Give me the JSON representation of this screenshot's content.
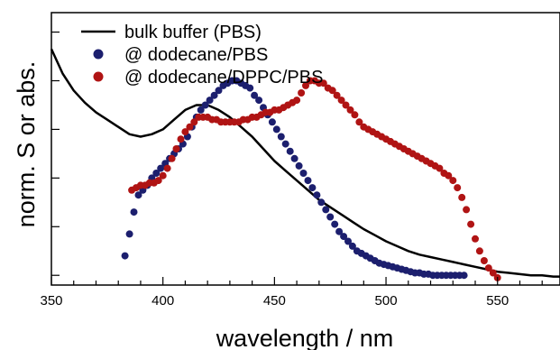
{
  "chart_data": {
    "type": "line",
    "xlabel": "wavelength / nm",
    "ylabel": "norm. S or abs.",
    "xlim": [
      350,
      578
    ],
    "ylim": [
      -0.04,
      1.08
    ],
    "x_ticks": [
      350,
      400,
      450,
      500,
      550
    ],
    "y_ticks_count": 7,
    "y_tick_labels_shown": false,
    "grid": false,
    "legend_placement": "top-left",
    "series": [
      {
        "name": "bulk buffer (PBS)",
        "style": "line",
        "color": "#000000",
        "x": [
          350,
          355,
          360,
          365,
          370,
          375,
          380,
          385,
          390,
          395,
          400,
          405,
          410,
          415,
          420,
          425,
          430,
          435,
          440,
          445,
          450,
          455,
          460,
          465,
          470,
          475,
          480,
          485,
          490,
          495,
          500,
          505,
          510,
          515,
          520,
          525,
          530,
          535,
          540,
          545,
          550,
          555,
          560,
          565,
          570,
          575,
          578
        ],
        "y": [
          0.93,
          0.83,
          0.76,
          0.71,
          0.67,
          0.64,
          0.61,
          0.58,
          0.57,
          0.58,
          0.6,
          0.64,
          0.68,
          0.7,
          0.7,
          0.68,
          0.65,
          0.61,
          0.57,
          0.52,
          0.47,
          0.43,
          0.39,
          0.35,
          0.31,
          0.28,
          0.25,
          0.22,
          0.19,
          0.165,
          0.14,
          0.12,
          0.1,
          0.085,
          0.075,
          0.065,
          0.055,
          0.045,
          0.035,
          0.025,
          0.015,
          0.01,
          0.005,
          0.0,
          0.0,
          -0.005,
          -0.005
        ]
      },
      {
        "name": "@ dodecane/PBS",
        "style": "markers",
        "color": "#1c1f6e",
        "x": [
          383,
          385,
          387,
          389,
          391,
          393,
          395,
          397,
          399,
          401,
          403,
          405,
          407,
          409,
          411,
          413,
          415,
          417,
          419,
          421,
          423,
          425,
          427,
          429,
          431,
          433,
          435,
          437,
          439,
          441,
          443,
          445,
          447,
          449,
          451,
          453,
          455,
          457,
          459,
          461,
          463,
          465,
          467,
          469,
          471,
          473,
          475,
          477,
          479,
          481,
          483,
          485,
          487,
          489,
          491,
          493,
          495,
          497,
          499,
          501,
          503,
          505,
          507,
          509,
          511,
          513,
          515,
          517,
          519,
          521,
          523,
          525,
          527,
          529,
          531,
          533,
          535
        ],
        "y": [
          0.08,
          0.17,
          0.26,
          0.33,
          0.35,
          0.37,
          0.4,
          0.42,
          0.44,
          0.46,
          0.48,
          0.5,
          0.52,
          0.54,
          0.57,
          0.61,
          0.65,
          0.68,
          0.7,
          0.72,
          0.74,
          0.76,
          0.78,
          0.79,
          0.8,
          0.8,
          0.79,
          0.78,
          0.77,
          0.74,
          0.72,
          0.69,
          0.66,
          0.63,
          0.6,
          0.57,
          0.54,
          0.51,
          0.48,
          0.45,
          0.42,
          0.39,
          0.36,
          0.33,
          0.3,
          0.27,
          0.24,
          0.21,
          0.18,
          0.16,
          0.14,
          0.12,
          0.1,
          0.09,
          0.08,
          0.07,
          0.06,
          0.05,
          0.045,
          0.04,
          0.035,
          0.03,
          0.025,
          0.02,
          0.015,
          0.01,
          0.01,
          0.005,
          0.005,
          0.0,
          0.0,
          0.0,
          0.0,
          0.0,
          0.0,
          0.0,
          0.0
        ]
      },
      {
        "name": "@ dodecane/DPPC/PBS",
        "style": "markers",
        "color": "#b01414",
        "x": [
          386,
          388,
          390,
          392,
          394,
          396,
          398,
          400,
          402,
          404,
          406,
          408,
          410,
          412,
          414,
          416,
          418,
          420,
          422,
          424,
          426,
          428,
          430,
          432,
          434,
          436,
          438,
          440,
          442,
          444,
          446,
          448,
          450,
          452,
          454,
          456,
          458,
          460,
          462,
          464,
          466,
          468,
          470,
          472,
          474,
          476,
          478,
          480,
          482,
          484,
          486,
          488,
          490,
          492,
          494,
          496,
          498,
          500,
          502,
          504,
          506,
          508,
          510,
          512,
          514,
          516,
          518,
          520,
          522,
          524,
          526,
          528,
          530,
          532,
          534,
          536,
          538,
          540,
          542,
          544,
          546,
          548,
          550
        ],
        "y": [
          0.35,
          0.36,
          0.37,
          0.37,
          0.38,
          0.38,
          0.39,
          0.41,
          0.44,
          0.48,
          0.52,
          0.56,
          0.59,
          0.61,
          0.63,
          0.65,
          0.65,
          0.65,
          0.64,
          0.64,
          0.63,
          0.63,
          0.63,
          0.63,
          0.63,
          0.64,
          0.64,
          0.65,
          0.65,
          0.66,
          0.67,
          0.67,
          0.68,
          0.68,
          0.69,
          0.7,
          0.71,
          0.72,
          0.75,
          0.78,
          0.8,
          0.8,
          0.79,
          0.79,
          0.77,
          0.76,
          0.74,
          0.72,
          0.7,
          0.68,
          0.66,
          0.63,
          0.61,
          0.6,
          0.59,
          0.58,
          0.57,
          0.56,
          0.55,
          0.54,
          0.53,
          0.52,
          0.51,
          0.5,
          0.49,
          0.48,
          0.47,
          0.46,
          0.45,
          0.44,
          0.42,
          0.41,
          0.39,
          0.36,
          0.32,
          0.27,
          0.21,
          0.15,
          0.1,
          0.06,
          0.03,
          0.01,
          -0.01
        ]
      }
    ]
  }
}
